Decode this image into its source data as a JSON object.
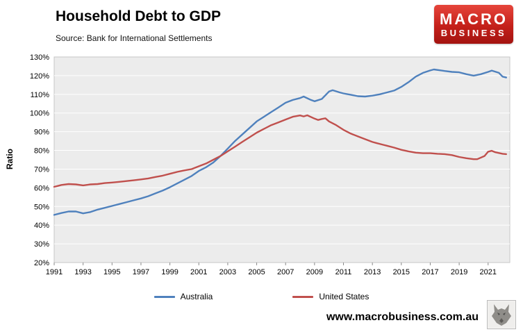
{
  "header": {
    "title": "Household Debt to GDP",
    "source": "Source: Bank for International Settlements"
  },
  "logo": {
    "line1": "MACRO",
    "line2": "BUSINESS",
    "background_color": "#c4201a"
  },
  "footer": {
    "website": "www.macrobusiness.com.au"
  },
  "chart_data": {
    "type": "line",
    "title": "Household Debt to GDP",
    "subtitle": "Source: Bank for International Settlements",
    "xlabel": "",
    "ylabel": "Ratio",
    "ylim": [
      20,
      130
    ],
    "ytick_step": 10,
    "ytick_suffix": "%",
    "xlim": [
      1991,
      2022.5
    ],
    "xticks": [
      1991,
      1993,
      1995,
      1997,
      1999,
      2001,
      2003,
      2005,
      2007,
      2009,
      2011,
      2013,
      2015,
      2017,
      2019,
      2021
    ],
    "grid": true,
    "legend_position": "bottom",
    "plot_background": "#ECECEC",
    "series": [
      {
        "name": "Australia",
        "color": "#4F81BD",
        "points": [
          [
            1991,
            45.5
          ],
          [
            1991.5,
            46.5
          ],
          [
            1992,
            47.3
          ],
          [
            1992.5,
            47.3
          ],
          [
            1993,
            46.3
          ],
          [
            1993.5,
            47
          ],
          [
            1994,
            48.3
          ],
          [
            1994.5,
            49.3
          ],
          [
            1995,
            50.3
          ],
          [
            1995.5,
            51.3
          ],
          [
            1996,
            52.3
          ],
          [
            1996.5,
            53.3
          ],
          [
            1997,
            54.3
          ],
          [
            1997.5,
            55.5
          ],
          [
            1998,
            57
          ],
          [
            1998.5,
            58.5
          ],
          [
            1999,
            60.3
          ],
          [
            1999.5,
            62.3
          ],
          [
            2000,
            64.3
          ],
          [
            2000.5,
            66.3
          ],
          [
            2001,
            69
          ],
          [
            2001.5,
            71
          ],
          [
            2002,
            73.5
          ],
          [
            2002.5,
            77
          ],
          [
            2003,
            81
          ],
          [
            2003.5,
            85
          ],
          [
            2004,
            88.5
          ],
          [
            2004.5,
            92
          ],
          [
            2005,
            95.5
          ],
          [
            2005.5,
            98
          ],
          [
            2006,
            100.5
          ],
          [
            2006.5,
            103
          ],
          [
            2007,
            105.5
          ],
          [
            2007.5,
            107
          ],
          [
            2008,
            108
          ],
          [
            2008.25,
            108.8
          ],
          [
            2008.75,
            107
          ],
          [
            2009,
            106.3
          ],
          [
            2009.5,
            107.5
          ],
          [
            2010,
            111.5
          ],
          [
            2010.25,
            112.2
          ],
          [
            2010.75,
            111
          ],
          [
            2011,
            110.5
          ],
          [
            2011.5,
            109.8
          ],
          [
            2012,
            109
          ],
          [
            2012.5,
            108.8
          ],
          [
            2013,
            109.3
          ],
          [
            2013.5,
            110
          ],
          [
            2014,
            111
          ],
          [
            2014.5,
            112
          ],
          [
            2015,
            114
          ],
          [
            2015.5,
            116.5
          ],
          [
            2016,
            119.5
          ],
          [
            2016.5,
            121.5
          ],
          [
            2017,
            122.8
          ],
          [
            2017.25,
            123.3
          ],
          [
            2017.75,
            122.8
          ],
          [
            2018,
            122.5
          ],
          [
            2018.5,
            122
          ],
          [
            2019,
            121.8
          ],
          [
            2019.5,
            120.8
          ],
          [
            2020,
            120
          ],
          [
            2020.5,
            120.8
          ],
          [
            2021,
            122
          ],
          [
            2021.25,
            122.7
          ],
          [
            2021.75,
            121.5
          ],
          [
            2022,
            119.5
          ],
          [
            2022.25,
            119
          ]
        ]
      },
      {
        "name": "United States",
        "color": "#C0504D",
        "points": [
          [
            1991,
            60.5
          ],
          [
            1991.25,
            61
          ],
          [
            1991.5,
            61.5
          ],
          [
            1992,
            62
          ],
          [
            1992.5,
            61.8
          ],
          [
            1993,
            61.3
          ],
          [
            1993.5,
            61.8
          ],
          [
            1994,
            62
          ],
          [
            1994.5,
            62.5
          ],
          [
            1995,
            62.8
          ],
          [
            1995.5,
            63.2
          ],
          [
            1996,
            63.6
          ],
          [
            1996.5,
            64
          ],
          [
            1997,
            64.5
          ],
          [
            1997.5,
            65
          ],
          [
            1998,
            65.8
          ],
          [
            1998.5,
            66.5
          ],
          [
            1999,
            67.5
          ],
          [
            1999.5,
            68.5
          ],
          [
            2000,
            69.3
          ],
          [
            2000.5,
            70
          ],
          [
            2001,
            71.5
          ],
          [
            2001.5,
            73
          ],
          [
            2002,
            75
          ],
          [
            2002.5,
            77
          ],
          [
            2003,
            79.5
          ],
          [
            2003.5,
            82
          ],
          [
            2004,
            84.5
          ],
          [
            2004.5,
            87
          ],
          [
            2005,
            89.5
          ],
          [
            2005.5,
            91.5
          ],
          [
            2006,
            93.5
          ],
          [
            2006.5,
            95
          ],
          [
            2007,
            96.5
          ],
          [
            2007.5,
            98
          ],
          [
            2008,
            98.7
          ],
          [
            2008.25,
            98.2
          ],
          [
            2008.5,
            98.8
          ],
          [
            2009,
            97
          ],
          [
            2009.25,
            96.3
          ],
          [
            2009.5,
            96.8
          ],
          [
            2009.75,
            97.2
          ],
          [
            2010,
            95.5
          ],
          [
            2010.5,
            93.5
          ],
          [
            2011,
            91
          ],
          [
            2011.5,
            89
          ],
          [
            2012,
            87.5
          ],
          [
            2012.5,
            86
          ],
          [
            2013,
            84.5
          ],
          [
            2013.25,
            84
          ],
          [
            2013.75,
            83
          ],
          [
            2014,
            82.5
          ],
          [
            2014.5,
            81.5
          ],
          [
            2015,
            80.3
          ],
          [
            2015.5,
            79.5
          ],
          [
            2016,
            78.8
          ],
          [
            2016.5,
            78.5
          ],
          [
            2017,
            78.5
          ],
          [
            2017.5,
            78.2
          ],
          [
            2018,
            78
          ],
          [
            2018.5,
            77.5
          ],
          [
            2019,
            76.5
          ],
          [
            2019.5,
            75.8
          ],
          [
            2020,
            75.3
          ],
          [
            2020.25,
            75.3
          ],
          [
            2020.75,
            77
          ],
          [
            2021,
            79.3
          ],
          [
            2021.25,
            79.8
          ],
          [
            2021.5,
            79
          ],
          [
            2022,
            78.2
          ],
          [
            2022.25,
            78
          ]
        ]
      }
    ]
  }
}
